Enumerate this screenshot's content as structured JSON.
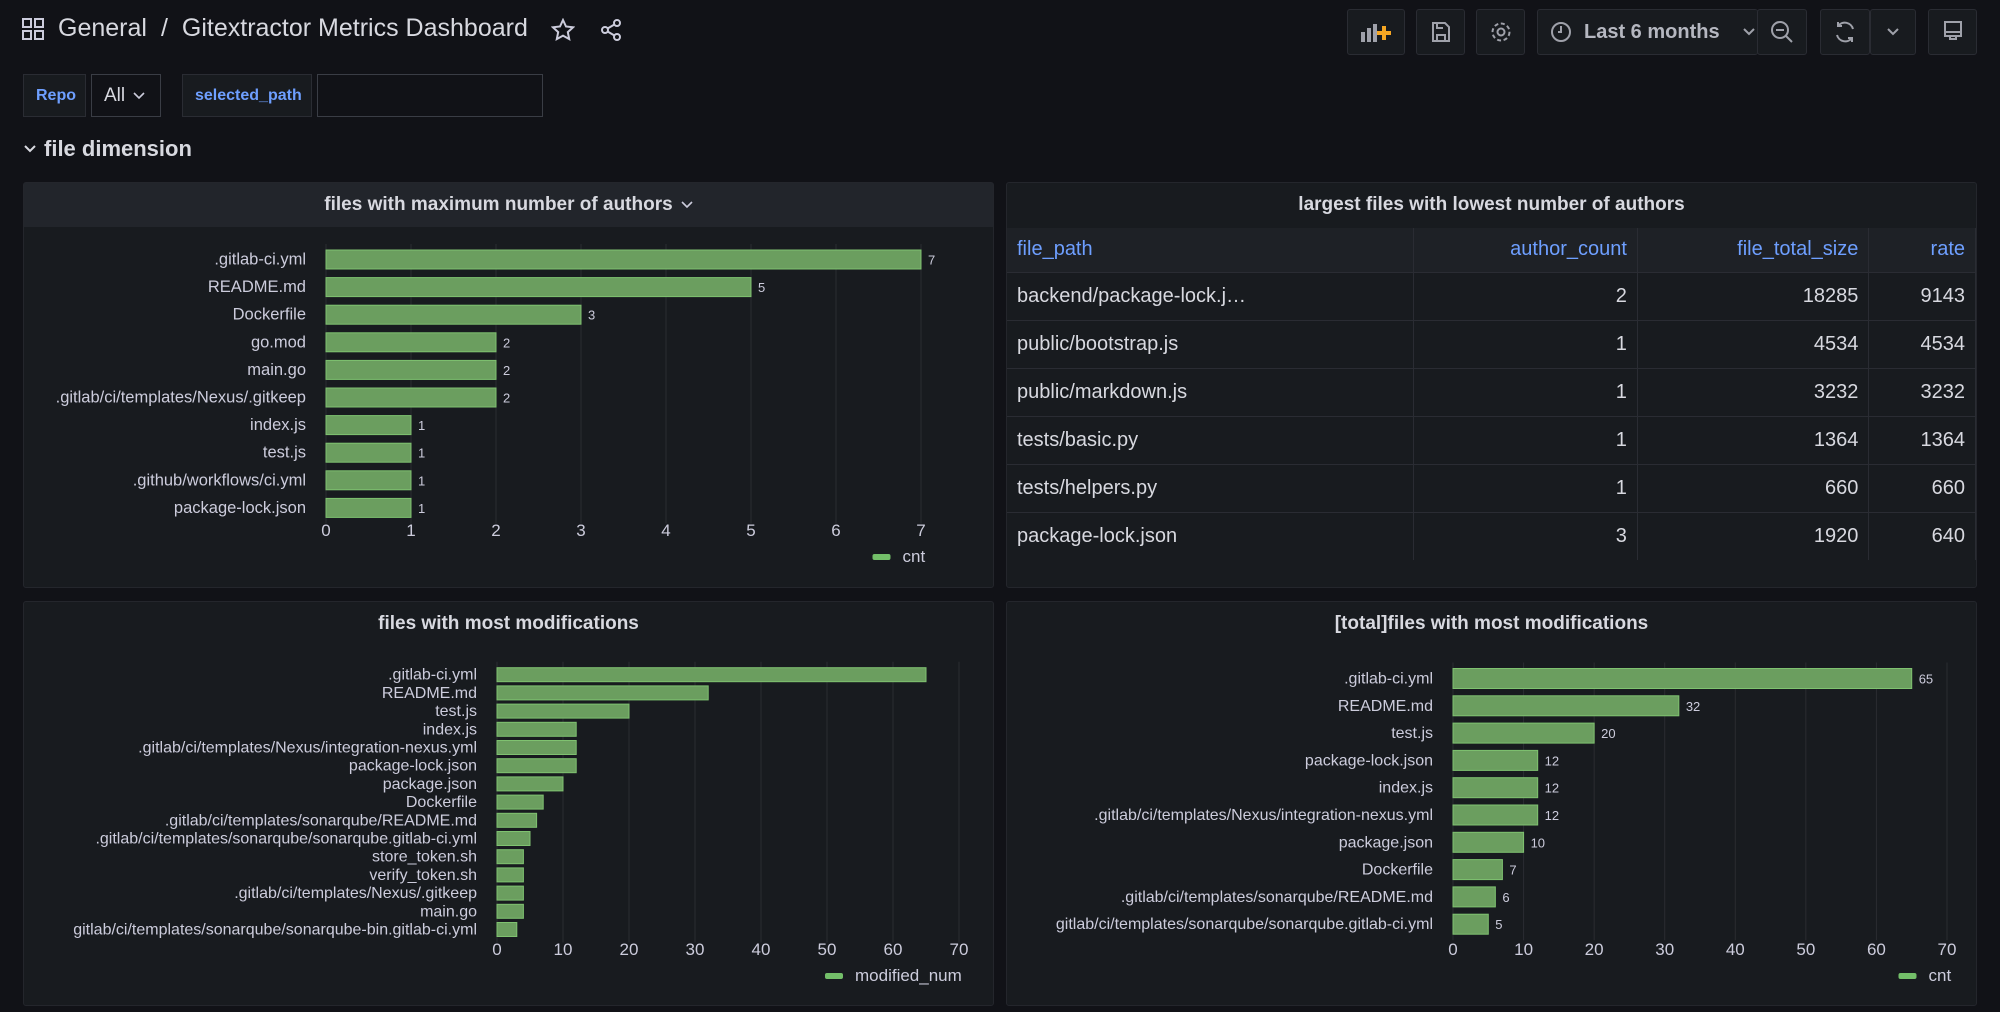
{
  "header": {
    "folder": "General",
    "separator": "/",
    "title": "Gitextractor Metrics Dashboard",
    "time_range": "Last 6 months"
  },
  "variables": {
    "repo_label": "Repo",
    "repo_value": "All",
    "path_label": "selected_path",
    "path_value": ""
  },
  "row": {
    "title": "file dimension"
  },
  "colors": {
    "bar": "#73bf69",
    "accent": "#6e9fff",
    "background": "#111217",
    "panel": "#181b1f"
  },
  "icons": [
    "apps-icon",
    "star-icon",
    "share-icon",
    "add-panel-icon",
    "save-icon",
    "gear-icon",
    "clock-icon",
    "chevron-down-icon",
    "zoom-out-icon",
    "refresh-icon",
    "tv-icon"
  ],
  "table": {
    "title": "largest files with lowest number of authors",
    "columns": [
      "file_path",
      "author_count",
      "file_total_size",
      "rate"
    ],
    "rows": [
      [
        "backend/package-lock.j…",
        "2",
        "18285",
        "9143"
      ],
      [
        "public/bootstrap.js",
        "1",
        "4534",
        "4534"
      ],
      [
        "public/markdown.js",
        "1",
        "3232",
        "3232"
      ],
      [
        "tests/basic.py",
        "1",
        "1364",
        "1364"
      ],
      [
        "tests/helpers.py",
        "1",
        "660",
        "660"
      ],
      [
        "package-lock.json",
        "3",
        "1920",
        "640"
      ]
    ]
  },
  "chart_data": [
    {
      "type": "bar",
      "orientation": "horizontal",
      "title": "files with maximum number of authors",
      "legend": "cnt",
      "legend_placement": "bottom-right",
      "xlim": [
        0,
        7
      ],
      "ticks": [
        "0",
        "1",
        "2",
        "3",
        "4",
        "5",
        "6",
        "7"
      ],
      "show_values": true,
      "categories": [
        ".gitlab-ci.yml",
        "README.md",
        "Dockerfile",
        "go.mod",
        "main.go",
        ".gitlab/ci/templates/Nexus/.gitkeep",
        "index.js",
        "test.js",
        ".github/workflows/ci.yml",
        "package-lock.json"
      ],
      "values": [
        7,
        5,
        3,
        2,
        2,
        2,
        1,
        1,
        1,
        1
      ]
    },
    {
      "type": "bar",
      "orientation": "horizontal",
      "title": "files with most modifications",
      "legend": "modified_num",
      "legend_placement": "bottom-right",
      "xlim": [
        0,
        70
      ],
      "ticks": [
        "0",
        "10",
        "20",
        "30",
        "40",
        "50",
        "60",
        "70"
      ],
      "show_values": false,
      "categories": [
        ".gitlab-ci.yml",
        "README.md",
        "test.js",
        "index.js",
        ".gitlab/ci/templates/Nexus/integration-nexus.yml",
        "package-lock.json",
        "package.json",
        "Dockerfile",
        ".gitlab/ci/templates/sonarqube/README.md",
        ".gitlab/ci/templates/sonarqube/sonarqube.gitlab-ci.yml",
        "store_token.sh",
        "verify_token.sh",
        ".gitlab/ci/templates/Nexus/.gitkeep",
        "main.go",
        "gitlab/ci/templates/sonarqube/sonarqube-bin.gitlab-ci.yml"
      ],
      "values": [
        65,
        32,
        20,
        12,
        12,
        12,
        10,
        7,
        6,
        5,
        4,
        4,
        4,
        4,
        3
      ]
    },
    {
      "type": "bar",
      "orientation": "horizontal",
      "title": "[total]files with most modifications",
      "legend": "cnt",
      "legend_placement": "bottom-right",
      "xlim": [
        0,
        70
      ],
      "ticks": [
        "0",
        "10",
        "20",
        "30",
        "40",
        "50",
        "60",
        "70"
      ],
      "show_values": true,
      "categories": [
        ".gitlab-ci.yml",
        "README.md",
        "test.js",
        "package-lock.json",
        "index.js",
        ".gitlab/ci/templates/Nexus/integration-nexus.yml",
        "package.json",
        "Dockerfile",
        ".gitlab/ci/templates/sonarqube/README.md",
        "gitlab/ci/templates/sonarqube/sonarqube.gitlab-ci.yml"
      ],
      "values": [
        65,
        32,
        20,
        12,
        12,
        12,
        10,
        7,
        6,
        5
      ]
    }
  ]
}
